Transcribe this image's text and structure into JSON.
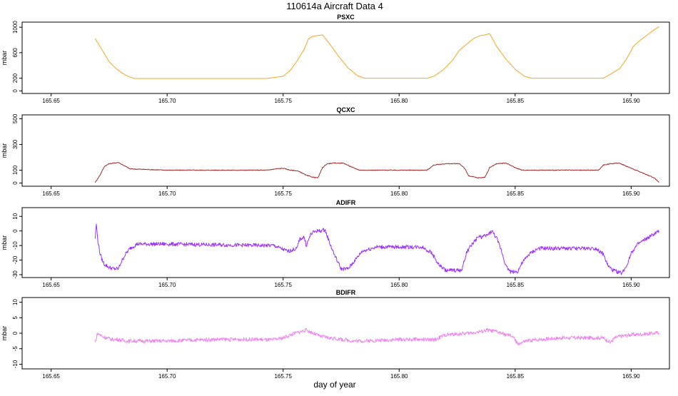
{
  "figure": {
    "title": "110614a   Aircraft Data 4",
    "xlabel": "day of year"
  },
  "chart_data": [
    {
      "type": "line",
      "title": "PSXC",
      "ylabel": "mbar",
      "color": "#f5a623",
      "xlim": [
        165.6375,
        165.9165
      ],
      "ylim": [
        -40,
        1080
      ],
      "x_ticks": [
        "165.65",
        "165.70",
        "165.75",
        "165.80",
        "165.85",
        "165.90"
      ],
      "y_ticks": [
        "0",
        "200",
        "600",
        "1000"
      ],
      "y_tick_values": [
        0,
        200,
        600,
        1000
      ],
      "noise": 0,
      "series": [
        {
          "x": [
            165.669,
            165.672,
            165.675,
            165.678,
            165.681,
            165.684,
            165.686,
            165.7,
            165.72,
            165.743,
            165.747,
            165.75,
            165.753,
            165.756,
            165.759,
            165.761,
            165.763,
            165.765,
            165.767,
            165.77,
            165.774,
            165.778,
            165.782,
            165.785,
            165.8,
            165.812,
            165.815,
            165.819,
            165.823,
            165.826,
            165.829,
            165.832,
            165.835,
            165.837,
            165.839,
            165.842,
            165.846,
            165.85,
            165.854,
            165.857,
            165.87,
            165.888,
            165.891,
            165.895,
            165.898,
            165.901,
            165.904,
            165.907,
            165.91,
            165.912
          ],
          "y": [
            820,
            640,
            460,
            350,
            270,
            215,
            195,
            195,
            195,
            195,
            215,
            230,
            320,
            470,
            650,
            820,
            860,
            870,
            880,
            740,
            540,
            360,
            240,
            200,
            200,
            200,
            230,
            330,
            480,
            640,
            730,
            820,
            870,
            880,
            900,
            700,
            500,
            340,
            230,
            200,
            200,
            200,
            260,
            350,
            500,
            700,
            800,
            880,
            960,
            1010
          ]
        }
      ]
    },
    {
      "type": "line",
      "title": "QCXC",
      "ylabel": "mbar",
      "color": "#a52a2a",
      "xlim": [
        165.6375,
        165.9165
      ],
      "ylim": [
        -25,
        530
      ],
      "x_ticks": [
        "165.65",
        "165.70",
        "165.75",
        "165.80",
        "165.85",
        "165.90"
      ],
      "y_ticks": [
        "0",
        "100",
        "300",
        "500"
      ],
      "y_tick_values": [
        0,
        100,
        300,
        500
      ],
      "noise": 3,
      "series": [
        {
          "x": [
            165.669,
            165.671,
            165.673,
            165.675,
            165.677,
            165.679,
            165.681,
            165.684,
            165.7,
            165.72,
            165.743,
            165.747,
            165.75,
            165.753,
            165.756,
            165.758,
            165.76,
            165.763,
            165.765,
            165.767,
            165.769,
            165.772,
            165.776,
            165.78,
            165.783,
            165.8,
            165.812,
            165.815,
            165.82,
            165.826,
            165.828,
            165.83,
            165.834,
            165.837,
            165.839,
            165.842,
            165.846,
            165.85,
            165.853,
            165.87,
            165.886,
            165.888,
            165.891,
            165.895,
            165.898,
            165.902,
            165.906,
            165.91,
            165.912
          ],
          "y": [
            5,
            60,
            130,
            150,
            155,
            160,
            140,
            110,
            100,
            100,
            100,
            110,
            115,
            100,
            95,
            80,
            60,
            45,
            40,
            120,
            150,
            155,
            155,
            120,
            100,
            100,
            100,
            140,
            150,
            150,
            120,
            55,
            40,
            45,
            120,
            150,
            155,
            120,
            100,
            100,
            100,
            140,
            150,
            155,
            130,
            100,
            70,
            40,
            5
          ]
        }
      ]
    },
    {
      "type": "line",
      "title": "ADIFR",
      "ylabel": "mbar",
      "color": "#9b30ff",
      "xlim": [
        165.6375,
        165.9165
      ],
      "ylim": [
        -32,
        16
      ],
      "x_ticks": [
        "165.65",
        "165.70",
        "165.75",
        "165.80",
        "165.85",
        "165.90"
      ],
      "y_ticks": [
        "-30",
        "-20",
        "-10",
        "0",
        "10"
      ],
      "y_tick_values": [
        -30,
        -20,
        -10,
        0,
        10
      ],
      "noise": 1.3,
      "series": [
        {
          "x": [
            165.669,
            165.6695,
            165.67,
            165.671,
            165.672,
            165.673,
            165.675,
            165.677,
            165.679,
            165.68,
            165.682,
            165.684,
            165.687,
            165.7,
            165.72,
            165.743,
            165.746,
            165.749,
            165.752,
            165.754,
            165.756,
            165.757,
            165.759,
            165.76,
            165.762,
            165.764,
            165.766,
            165.768,
            165.77,
            165.772,
            165.775,
            165.778,
            165.781,
            165.784,
            165.79,
            165.8,
            165.81,
            165.814,
            165.817,
            165.82,
            165.824,
            165.827,
            165.829,
            165.831,
            165.834,
            165.836,
            165.838,
            165.84,
            165.842,
            165.844,
            165.846,
            165.848,
            165.851,
            165.853,
            165.856,
            165.86,
            165.87,
            165.88,
            165.885,
            165.888,
            165.89,
            165.892,
            165.894,
            165.896,
            165.898,
            165.9,
            165.903,
            165.906,
            165.909,
            165.912
          ],
          "y": [
            -5,
            5,
            -5,
            -15,
            -20,
            -23,
            -25,
            -26,
            -26,
            -22,
            -16,
            -12,
            -9,
            -9,
            -9.5,
            -10,
            -10,
            -12,
            -14,
            -13,
            -12,
            -6,
            -4,
            -10,
            -2,
            0,
            0,
            1,
            -8,
            -16,
            -26,
            -26,
            -20,
            -14,
            -11,
            -11,
            -11,
            -15,
            -23,
            -27,
            -27,
            -27,
            -15,
            -10,
            -4,
            -4,
            -3,
            0,
            -5,
            -13,
            -24,
            -28,
            -28,
            -22,
            -16,
            -12,
            -12,
            -12,
            -12,
            -16,
            -24,
            -27,
            -28,
            -29,
            -24,
            -15,
            -9,
            -6,
            -3,
            0
          ]
        }
      ]
    },
    {
      "type": "line",
      "title": "BDIFR",
      "ylabel": "mbar",
      "color": "#ee82ee",
      "xlim": [
        165.6375,
        165.9165
      ],
      "ylim": [
        -11.5,
        11.5
      ],
      "x_ticks": [
        "165.65",
        "165.70",
        "165.75",
        "165.80",
        "165.85",
        "165.90"
      ],
      "y_ticks": [
        "-10",
        "-5",
        "0",
        "5",
        "10"
      ],
      "y_tick_values": [
        -10,
        -5,
        0,
        5,
        10
      ],
      "noise": 0.6,
      "series": [
        {
          "x": [
            165.669,
            165.67,
            165.672,
            165.674,
            165.676,
            165.679,
            165.682,
            165.686,
            165.69,
            165.7,
            165.72,
            165.74,
            165.745,
            165.75,
            165.755,
            165.76,
            165.763,
            165.766,
            165.77,
            165.775,
            165.78,
            165.785,
            165.8,
            165.81,
            165.815,
            165.82,
            165.825,
            165.83,
            165.835,
            165.838,
            165.842,
            165.846,
            165.849,
            165.851,
            165.855,
            165.86,
            165.87,
            165.88,
            165.888,
            165.891,
            165.893,
            165.895,
            165.9,
            165.905,
            165.91,
            165.912
          ],
          "y": [
            -3,
            0,
            -1,
            -1.5,
            -2,
            -2,
            -2.5,
            -2.5,
            -2.5,
            -2.5,
            -2,
            -2,
            -2.2,
            -1.5,
            0,
            1,
            0,
            -1,
            -1.5,
            -2,
            -2.5,
            -2.5,
            -2,
            -2,
            -2.2,
            -0.5,
            -0.3,
            0,
            0.5,
            1,
            0.5,
            -0.5,
            -1,
            -3.5,
            -2.5,
            -2,
            -1.5,
            -1.5,
            -1.5,
            -3,
            -1.5,
            -1,
            -0.5,
            -0.3,
            0,
            0.2
          ]
        }
      ]
    }
  ]
}
